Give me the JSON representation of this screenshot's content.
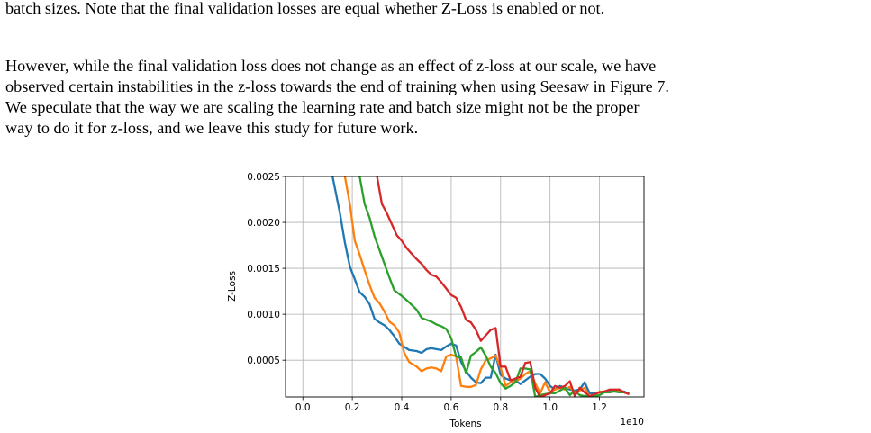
{
  "paragraphs": {
    "p1": "batch sizes. Note that the final validation losses are equal whether Z-Loss is enabled or not.",
    "p2_lines": [
      "However, while the final validation loss does not change as an effect of z-loss at our scale, we have",
      "observed certain instabilities in the z-loss towards the end of training when using Seesaw in Figure 7.",
      "We speculate that the way we are scaling the learning rate and batch size might not be the proper",
      "way to do it for z-loss, and we leave this study for future work."
    ]
  },
  "chart_data": {
    "type": "line",
    "title": "",
    "xlabel": "Tokens",
    "ylabel": "Z-Loss",
    "x_offset_label": "1e10",
    "xlim": [
      -0.07,
      1.38
    ],
    "ylim": [
      0.0001,
      0.0025
    ],
    "xticks": [
      "0.0",
      "0.2",
      "0.4",
      "0.6",
      "0.8",
      "1.0",
      "1.2"
    ],
    "yticks": [
      "0.0005",
      "0.0010",
      "0.0015",
      "0.0020",
      "0.0025"
    ],
    "grid": true,
    "colors": [
      "#1f77b4",
      "#ff7f0e",
      "#2ca02c",
      "#d62728"
    ],
    "series": [
      {
        "color": "#1f77b4",
        "x": [
          0.12,
          0.15,
          0.17,
          0.19,
          0.21,
          0.23,
          0.25,
          0.27,
          0.29,
          0.31,
          0.33,
          0.35,
          0.37,
          0.39,
          0.43,
          0.46,
          0.48,
          0.5,
          0.52,
          0.54,
          0.56,
          0.58,
          0.6,
          0.62,
          0.64,
          0.66,
          0.68,
          0.7,
          0.72,
          0.74,
          0.76,
          0.78,
          0.8,
          0.82,
          0.84,
          0.86,
          0.88,
          0.9,
          0.92,
          0.94,
          0.96,
          0.98,
          1.0,
          1.02,
          1.04,
          1.06,
          1.08,
          1.1,
          1.12,
          1.14,
          1.16,
          1.18,
          1.2,
          1.22,
          1.24,
          1.26,
          1.28,
          1.3,
          1.32
        ],
        "values": [
          0.0025,
          0.0021,
          0.00178,
          0.00152,
          0.00138,
          0.00124,
          0.00119,
          0.00111,
          0.00095,
          0.00091,
          0.00088,
          0.00083,
          0.00076,
          0.00068,
          0.00061,
          0.0006,
          0.00058,
          0.00062,
          0.00063,
          0.00062,
          0.00061,
          0.00065,
          0.00068,
          0.00066,
          0.00048,
          0.00038,
          0.00031,
          0.00026,
          0.00025,
          0.00031,
          0.00031,
          0.00056,
          0.00034,
          0.0003,
          0.00028,
          0.00028,
          0.00024,
          0.00028,
          0.00032,
          0.00035,
          0.00035,
          0.0003,
          0.00022,
          0.00018,
          0.00022,
          0.0002,
          0.00018,
          0.00017,
          0.00018,
          0.00026,
          0.00014,
          0.00014,
          0.00015,
          0.00016,
          0.00016,
          0.00016,
          0.00015,
          0.00016,
          0.00013
        ]
      },
      {
        "color": "#ff7f0e",
        "x": [
          0.17,
          0.19,
          0.21,
          0.23,
          0.25,
          0.27,
          0.29,
          0.31,
          0.33,
          0.35,
          0.37,
          0.39,
          0.41,
          0.43,
          0.46,
          0.48,
          0.5,
          0.52,
          0.54,
          0.56,
          0.58,
          0.6,
          0.62,
          0.64,
          0.66,
          0.68,
          0.7,
          0.72,
          0.74,
          0.76,
          0.78,
          0.8,
          0.82,
          0.84,
          0.86,
          0.88,
          0.9,
          0.92,
          0.94,
          0.96,
          0.98,
          1.0,
          1.02,
          1.04,
          1.06,
          1.08,
          1.1,
          1.12,
          1.14,
          1.16,
          1.18,
          1.2,
          1.22,
          1.24,
          1.26,
          1.28,
          1.3,
          1.32
        ],
        "values": [
          0.0025,
          0.0022,
          0.0018,
          0.00165,
          0.00148,
          0.00132,
          0.00118,
          0.00112,
          0.00103,
          0.00092,
          0.00088,
          0.0008,
          0.00058,
          0.00048,
          0.00043,
          0.00038,
          0.00041,
          0.00042,
          0.00041,
          0.00038,
          0.00054,
          0.00056,
          0.00054,
          0.00022,
          0.00021,
          0.00021,
          0.00023,
          0.0004,
          0.0005,
          0.00052,
          0.00055,
          0.00042,
          0.00022,
          0.00026,
          0.00027,
          0.0003,
          0.00035,
          0.00038,
          0.00025,
          0.00014,
          0.00026,
          0.00015,
          0.00018,
          0.0002,
          0.00018,
          0.00021,
          0.00014,
          0.00017,
          0.0002,
          0.0001,
          0.00012,
          0.00016,
          0.00015,
          0.00015,
          0.00016,
          0.00016,
          0.00015,
          0.00013
        ]
      },
      {
        "color": "#2ca02c",
        "x": [
          0.23,
          0.25,
          0.27,
          0.29,
          0.31,
          0.33,
          0.35,
          0.37,
          0.4,
          0.43,
          0.46,
          0.48,
          0.5,
          0.52,
          0.54,
          0.56,
          0.58,
          0.6,
          0.62,
          0.64,
          0.66,
          0.68,
          0.7,
          0.72,
          0.74,
          0.76,
          0.78,
          0.8,
          0.82,
          0.84,
          0.86,
          0.88,
          0.9,
          0.92,
          0.94,
          0.96,
          0.98,
          1.0,
          1.02,
          1.04,
          1.06,
          1.08,
          1.1,
          1.12,
          1.14,
          1.16,
          1.18,
          1.2,
          1.22,
          1.24,
          1.26,
          1.28,
          1.3,
          1.32
        ],
        "values": [
          0.0025,
          0.0022,
          0.00205,
          0.00185,
          0.0017,
          0.00155,
          0.0014,
          0.00126,
          0.0012,
          0.00113,
          0.00105,
          0.00096,
          0.00094,
          0.00092,
          0.00089,
          0.00087,
          0.00084,
          0.00074,
          0.00054,
          0.00053,
          0.00036,
          0.00055,
          0.00059,
          0.00064,
          0.00055,
          0.00043,
          0.00036,
          0.00025,
          0.00019,
          0.00022,
          0.00026,
          0.00041,
          0.00041,
          0.0004,
          0.0001,
          0.00012,
          0.00013,
          0.00014,
          0.00014,
          0.00017,
          0.0002,
          0.00012,
          0.00017,
          0.00012,
          0.00011,
          0.00011,
          0.00011,
          0.00012,
          0.00015,
          0.00015,
          0.00016,
          0.00015,
          0.00015,
          0.00014
        ]
      },
      {
        "color": "#d62728",
        "x": [
          0.3,
          0.32,
          0.34,
          0.36,
          0.38,
          0.4,
          0.42,
          0.44,
          0.46,
          0.48,
          0.5,
          0.52,
          0.54,
          0.56,
          0.58,
          0.6,
          0.62,
          0.64,
          0.66,
          0.68,
          0.7,
          0.72,
          0.74,
          0.76,
          0.78,
          0.8,
          0.82,
          0.84,
          0.86,
          0.88,
          0.9,
          0.92,
          0.94,
          0.96,
          0.98,
          1.0,
          1.02,
          1.04,
          1.06,
          1.08,
          1.1,
          1.12,
          1.14,
          1.16,
          1.18,
          1.2,
          1.22,
          1.24,
          1.26,
          1.28,
          1.3,
          1.32
        ],
        "values": [
          0.0025,
          0.0022,
          0.0021,
          0.00198,
          0.00186,
          0.0018,
          0.00172,
          0.00166,
          0.0016,
          0.00155,
          0.00148,
          0.00143,
          0.00141,
          0.00135,
          0.00128,
          0.00121,
          0.00118,
          0.00108,
          0.00094,
          0.00091,
          0.00083,
          0.00071,
          0.00077,
          0.00083,
          0.00085,
          0.00043,
          0.00043,
          0.00028,
          0.0003,
          0.00032,
          0.00047,
          0.00048,
          0.0002,
          0.0001,
          0.00012,
          0.00014,
          0.00022,
          0.0002,
          0.00022,
          0.00027,
          0.00011,
          0.0002,
          0.00015,
          0.00011,
          0.00013,
          0.00015,
          0.00016,
          0.00018,
          0.00018,
          0.00018,
          0.00015,
          0.00013
        ]
      }
    ]
  }
}
